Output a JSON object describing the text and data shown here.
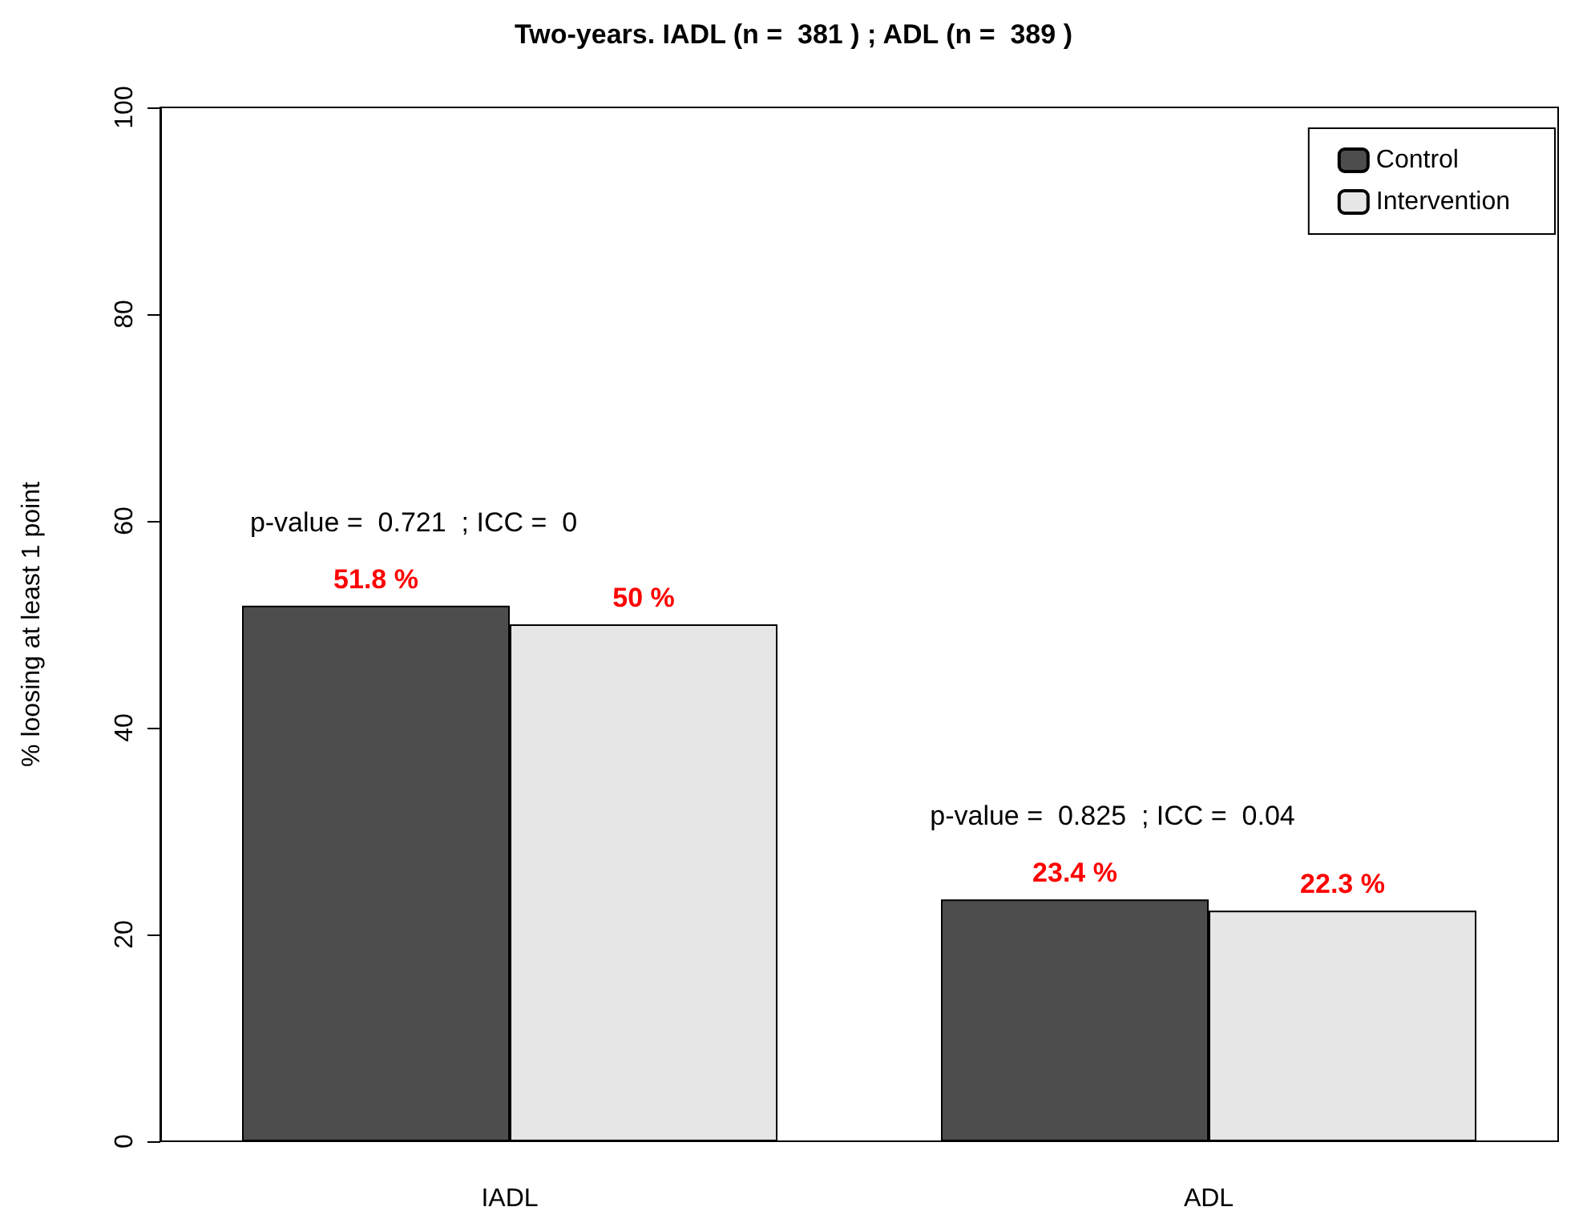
{
  "chart_data": {
    "type": "bar",
    "title": "Two-years. IADL (n =  381 ) ; ADL (n =  389 )",
    "ylabel": "% loosing at least 1 point",
    "categories": [
      "IADL",
      "ADL"
    ],
    "series": [
      {
        "name": "Control",
        "color": "#4d4d4d",
        "values": [
          51.8,
          23.4
        ],
        "value_labels": [
          "51.8 %",
          "23.4 %"
        ]
      },
      {
        "name": "Intervention",
        "color": "#e6e6e6",
        "values": [
          50,
          22.3
        ],
        "value_labels": [
          "50 %",
          "22.3 %"
        ]
      }
    ],
    "annotations": [
      "p-value =  0.721  ; ICC =  0",
      "p-value =  0.825  ; ICC =  0.04"
    ],
    "ylim": [
      0,
      100
    ],
    "yticks": [
      0,
      20,
      40,
      60,
      80,
      100
    ],
    "grid": false,
    "legend": "top right"
  }
}
